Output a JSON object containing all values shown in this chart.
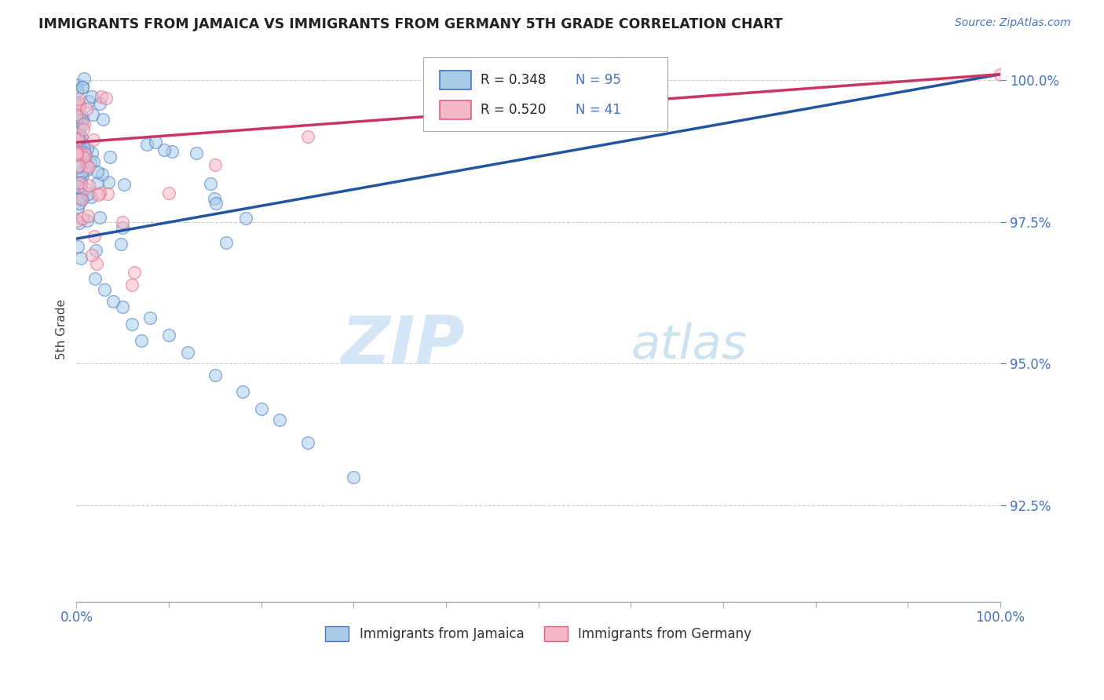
{
  "title": "IMMIGRANTS FROM JAMAICA VS IMMIGRANTS FROM GERMANY 5TH GRADE CORRELATION CHART",
  "source_text": "Source: ZipAtlas.com",
  "ylabel": "5th Grade",
  "x_min": 0.0,
  "x_max": 1.0,
  "y_min": 0.908,
  "y_max": 1.004,
  "y_ticks": [
    0.925,
    0.95,
    0.975,
    1.0
  ],
  "y_tick_labels": [
    "92.5%",
    "95.0%",
    "97.5%",
    "100.0%"
  ],
  "x_tick_labels_show": [
    "0.0%",
    "100.0%"
  ],
  "R_blue": 0.348,
  "N_blue": 95,
  "R_pink": 0.52,
  "N_pink": 41,
  "blue_color": "#a8cce8",
  "blue_edge_color": "#4472c4",
  "blue_line_color": "#2255a0",
  "pink_color": "#f5b8c8",
  "pink_edge_color": "#e06080",
  "pink_line_color": "#cc3366",
  "legend_jamaica": "Immigrants from Jamaica",
  "legend_germany": "Immigrants from Germany",
  "watermark_zip": "ZIP",
  "watermark_atlas": "atlas",
  "background_color": "#ffffff",
  "grid_color": "#cccccc",
  "blue_trend_x0": 0.0,
  "blue_trend_y0": 0.972,
  "blue_trend_x1": 1.0,
  "blue_trend_y1": 1.001,
  "pink_trend_x0": 0.0,
  "pink_trend_y0": 0.989,
  "pink_trend_x1": 1.0,
  "pink_trend_y1": 1.001
}
